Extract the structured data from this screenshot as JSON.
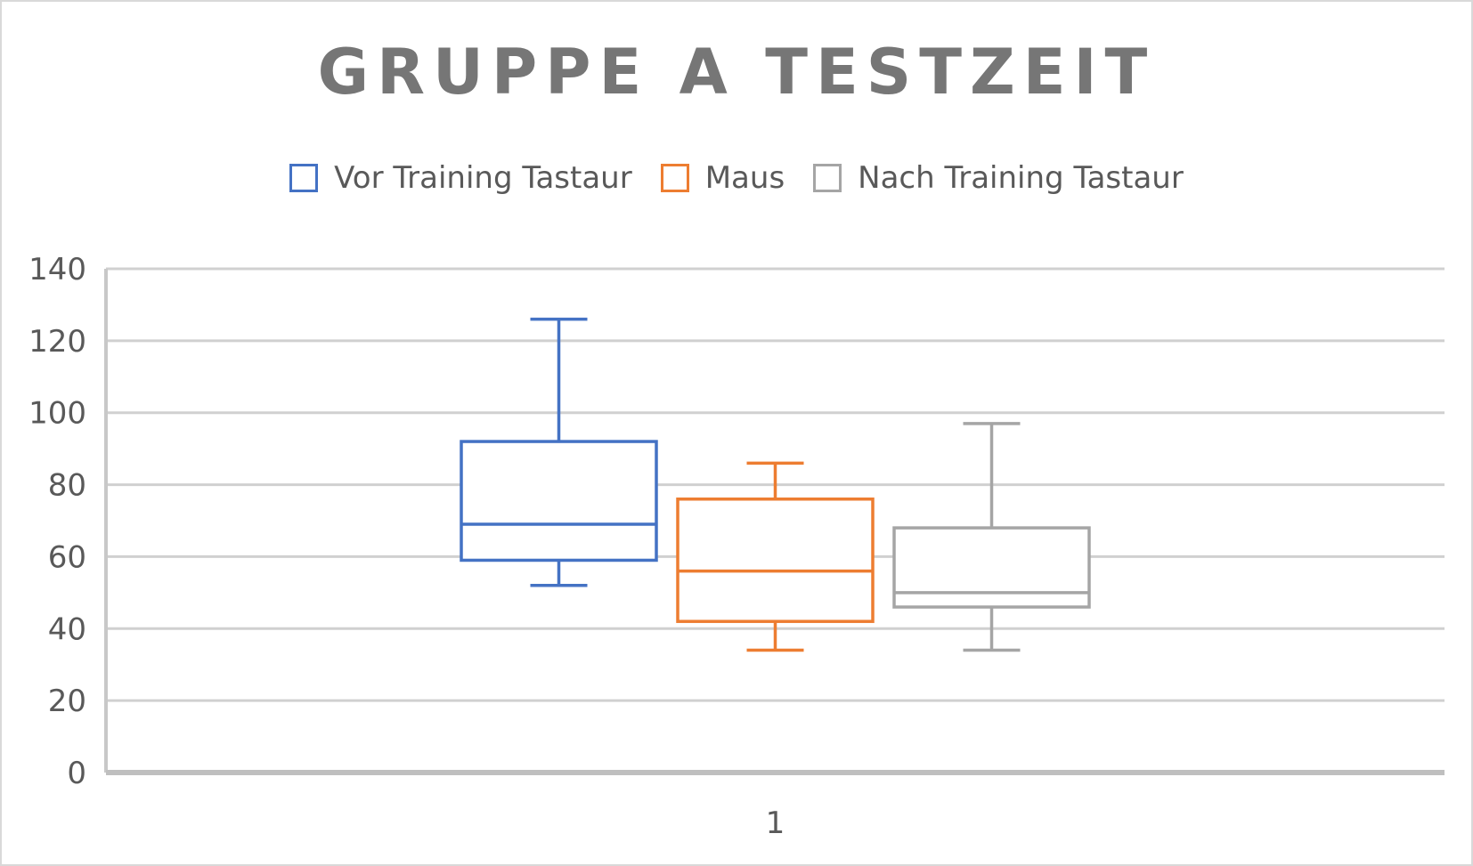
{
  "chart_data": {
    "type": "box",
    "title": "GRUPPE A TESTZEIT",
    "xlabel": "",
    "ylabel": "",
    "categories": [
      "1"
    ],
    "ylim": [
      0,
      140
    ],
    "yticks": [
      0,
      20,
      40,
      60,
      80,
      100,
      120,
      140
    ],
    "grid": true,
    "legend_position": "top",
    "series": [
      {
        "name": "Vor Training Tastaur",
        "color": "#4472c4",
        "min": 52,
        "q1": 59,
        "median": 69,
        "q3": 92,
        "max": 126
      },
      {
        "name": "Maus",
        "color": "#ed7d31",
        "min": 34,
        "q1": 42,
        "median": 56,
        "q3": 76,
        "max": 86
      },
      {
        "name": "Nach Training Tastaur",
        "color": "#a5a5a5",
        "min": 34,
        "q1": 46,
        "median": 50,
        "q3": 68,
        "max": 97
      }
    ]
  }
}
